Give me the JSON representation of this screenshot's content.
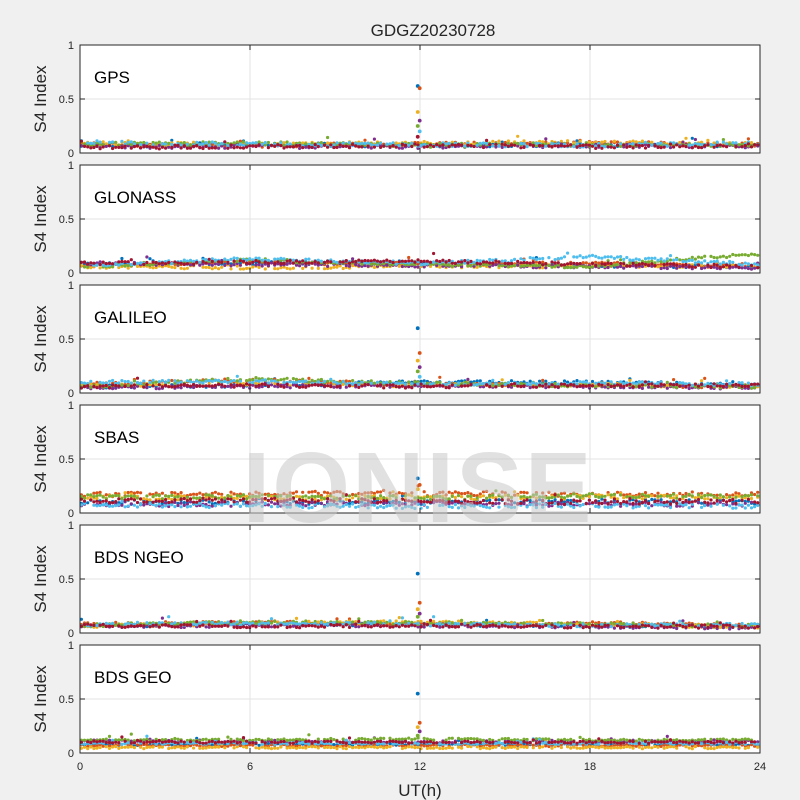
{
  "title": "GDGZ20230728",
  "watermark": "IONISE",
  "chart_data": {
    "type": "scatter",
    "title": "GDGZ20230728",
    "xlabel": "UT(h)",
    "ylabel": "S4 Index",
    "xlim": [
      0,
      24
    ],
    "ylim": [
      0,
      1
    ],
    "x_ticks": [
      "0",
      "6",
      "12",
      "18",
      "24"
    ],
    "y_ticks": [
      "0",
      "0.5",
      "1"
    ],
    "grid": true,
    "colors": [
      "#0072BD",
      "#D95319",
      "#EDB120",
      "#7E2F8E",
      "#77AC30",
      "#4DBEEE",
      "#A2142F"
    ],
    "panels": [
      {
        "label": "GPS",
        "baseline": 0.07,
        "noise": 0.035,
        "tracks": [
          {
            "color": "#0072BD",
            "x": [
              0,
              6,
              12,
              18,
              24
            ],
            "y": [
              0.07,
              0.08,
              0.07,
              0.08,
              0.07
            ]
          },
          {
            "color": "#D95319",
            "x": [
              0,
              6,
              12,
              18,
              24
            ],
            "y": [
              0.08,
              0.07,
              0.08,
              0.09,
              0.08
            ]
          },
          {
            "color": "#EDB120",
            "x": [
              0,
              6,
              12,
              18,
              24
            ],
            "y": [
              0.09,
              0.08,
              0.09,
              0.1,
              0.08
            ]
          },
          {
            "color": "#7E2F8E",
            "x": [
              0,
              6,
              12,
              18,
              24
            ],
            "y": [
              0.06,
              0.06,
              0.06,
              0.07,
              0.06
            ]
          },
          {
            "color": "#77AC30",
            "x": [
              0,
              6,
              12,
              18,
              24
            ],
            "y": [
              0.08,
              0.09,
              0.07,
              0.08,
              0.07
            ]
          },
          {
            "color": "#4DBEEE",
            "x": [
              0,
              6,
              12,
              18,
              24
            ],
            "y": [
              0.1,
              0.08,
              0.08,
              0.07,
              0.09
            ]
          },
          {
            "color": "#A2142F",
            "x": [
              0,
              6,
              12,
              18,
              24
            ],
            "y": [
              0.05,
              0.06,
              0.07,
              0.06,
              0.07
            ]
          }
        ],
        "spike": {
          "x": 11.95,
          "y": [
            0.62,
            0.6,
            0.38,
            0.3,
            0.25,
            0.2,
            0.15
          ]
        }
      },
      {
        "label": "GLONASS",
        "baseline": 0.08,
        "noise": 0.03,
        "tracks": [
          {
            "color": "#0072BD",
            "x": [
              0,
              6,
              12,
              18,
              24
            ],
            "y": [
              0.08,
              0.09,
              0.1,
              0.07,
              0.06
            ]
          },
          {
            "color": "#D95319",
            "x": [
              0,
              6,
              12,
              18,
              24
            ],
            "y": [
              0.07,
              0.1,
              0.08,
              0.09,
              0.06
            ]
          },
          {
            "color": "#EDB120",
            "x": [
              0,
              6,
              12,
              18,
              24
            ],
            "y": [
              0.06,
              0.05,
              0.06,
              0.06,
              0.07
            ]
          },
          {
            "color": "#7E2F8E",
            "x": [
              0,
              6,
              12,
              18,
              24
            ],
            "y": [
              0.09,
              0.08,
              0.07,
              0.06,
              0.05
            ]
          },
          {
            "color": "#77AC30",
            "x": [
              0,
              6,
              12,
              18,
              24
            ],
            "y": [
              0.06,
              0.12,
              0.08,
              0.06,
              0.18
            ]
          },
          {
            "color": "#4DBEEE",
            "x": [
              0,
              6,
              12,
              18,
              24
            ],
            "y": [
              0.07,
              0.13,
              0.09,
              0.15,
              0.08
            ]
          },
          {
            "color": "#A2142F",
            "x": [
              0,
              6,
              12,
              18,
              24
            ],
            "y": [
              0.09,
              0.1,
              0.11,
              0.08,
              0.06
            ]
          }
        ],
        "spike": null
      },
      {
        "label": "GALILEO",
        "baseline": 0.07,
        "noise": 0.03,
        "tracks": [
          {
            "color": "#0072BD",
            "x": [
              0,
              6,
              12,
              18,
              24
            ],
            "y": [
              0.06,
              0.07,
              0.1,
              0.1,
              0.07
            ]
          },
          {
            "color": "#D95319",
            "x": [
              0,
              6,
              12,
              18,
              24
            ],
            "y": [
              0.08,
              0.12,
              0.08,
              0.07,
              0.06
            ]
          },
          {
            "color": "#EDB120",
            "x": [
              0,
              6,
              12,
              18,
              24
            ],
            "y": [
              0.07,
              0.08,
              0.07,
              0.08,
              0.06
            ]
          },
          {
            "color": "#7E2F8E",
            "x": [
              0,
              6,
              12,
              18,
              24
            ],
            "y": [
              0.05,
              0.06,
              0.07,
              0.06,
              0.05
            ]
          },
          {
            "color": "#77AC30",
            "x": [
              0,
              6,
              12,
              18,
              24
            ],
            "y": [
              0.06,
              0.13,
              0.09,
              0.07,
              0.06
            ]
          },
          {
            "color": "#4DBEEE",
            "x": [
              0,
              6,
              12,
              18,
              24
            ],
            "y": [
              0.1,
              0.11,
              0.08,
              0.09,
              0.08
            ]
          },
          {
            "color": "#A2142F",
            "x": [
              0,
              6,
              12,
              18,
              24
            ],
            "y": [
              0.06,
              0.07,
              0.06,
              0.07,
              0.07
            ]
          }
        ],
        "spike": {
          "x": 11.95,
          "y": [
            0.6,
            0.37,
            0.3,
            0.24,
            0.2,
            0.15
          ]
        }
      },
      {
        "label": "SBAS",
        "baseline": 0.12,
        "noise": 0.04,
        "tracks": [
          {
            "color": "#0072BD",
            "x": [
              0,
              6,
              12,
              18,
              24
            ],
            "y": [
              0.1,
              0.1,
              0.1,
              0.11,
              0.1
            ]
          },
          {
            "color": "#D95319",
            "x": [
              0,
              6,
              12,
              18,
              24
            ],
            "y": [
              0.17,
              0.18,
              0.18,
              0.17,
              0.18
            ]
          },
          {
            "color": "#EDB120",
            "x": [
              0,
              6,
              12,
              18,
              24
            ],
            "y": [
              0.14,
              0.14,
              0.14,
              0.15,
              0.14
            ]
          },
          {
            "color": "#7E2F8E",
            "x": [
              0,
              6,
              12,
              18,
              24
            ],
            "y": [
              0.08,
              0.08,
              0.09,
              0.08,
              0.08
            ]
          },
          {
            "color": "#77AC30",
            "x": [
              0,
              6,
              12,
              18,
              24
            ],
            "y": [
              0.15,
              0.15,
              0.14,
              0.16,
              0.15
            ]
          },
          {
            "color": "#4DBEEE",
            "x": [
              0,
              6,
              12,
              18,
              24
            ],
            "y": [
              0.07,
              0.07,
              0.06,
              0.07,
              0.06
            ]
          },
          {
            "color": "#A2142F",
            "x": [
              0,
              6,
              12,
              18,
              24
            ],
            "y": [
              0.11,
              0.12,
              0.11,
              0.1,
              0.11
            ]
          }
        ],
        "spike": {
          "x": 11.95,
          "y": [
            0.32,
            0.26,
            0.22
          ]
        }
      },
      {
        "label": "BDS NGEO",
        "baseline": 0.07,
        "noise": 0.03,
        "tracks": [
          {
            "color": "#0072BD",
            "x": [
              0,
              6,
              12,
              18,
              24
            ],
            "y": [
              0.07,
              0.08,
              0.08,
              0.07,
              0.06
            ]
          },
          {
            "color": "#D95319",
            "x": [
              0,
              6,
              12,
              18,
              24
            ],
            "y": [
              0.08,
              0.1,
              0.08,
              0.09,
              0.07
            ]
          },
          {
            "color": "#EDB120",
            "x": [
              0,
              6,
              12,
              18,
              24
            ],
            "y": [
              0.06,
              0.09,
              0.1,
              0.08,
              0.06
            ]
          },
          {
            "color": "#7E2F8E",
            "x": [
              0,
              6,
              12,
              18,
              24
            ],
            "y": [
              0.06,
              0.07,
              0.07,
              0.06,
              0.05
            ]
          },
          {
            "color": "#77AC30",
            "x": [
              0,
              6,
              12,
              18,
              24
            ],
            "y": [
              0.07,
              0.1,
              0.09,
              0.08,
              0.07
            ]
          },
          {
            "color": "#4DBEEE",
            "x": [
              0,
              6,
              12,
              18,
              24
            ],
            "y": [
              0.08,
              0.09,
              0.08,
              0.07,
              0.08
            ]
          },
          {
            "color": "#A2142F",
            "x": [
              0,
              6,
              12,
              18,
              24
            ],
            "y": [
              0.07,
              0.06,
              0.07,
              0.06,
              0.06
            ]
          }
        ],
        "spike": {
          "x": 11.95,
          "y": [
            0.55,
            0.28,
            0.22,
            0.18,
            0.15
          ]
        }
      },
      {
        "label": "BDS GEO",
        "baseline": 0.09,
        "noise": 0.02,
        "tracks": [
          {
            "color": "#0072BD",
            "x": [
              0,
              6,
              12,
              18,
              24
            ],
            "y": [
              0.08,
              0.08,
              0.08,
              0.08,
              0.08
            ]
          },
          {
            "color": "#D95319",
            "x": [
              0,
              6,
              12,
              18,
              24
            ],
            "y": [
              0.07,
              0.07,
              0.07,
              0.07,
              0.07
            ]
          },
          {
            "color": "#EDB120",
            "x": [
              0,
              6,
              12,
              18,
              24
            ],
            "y": [
              0.05,
              0.05,
              0.05,
              0.05,
              0.05
            ]
          },
          {
            "color": "#7E2F8E",
            "x": [
              0,
              6,
              12,
              18,
              24
            ],
            "y": [
              0.11,
              0.11,
              0.1,
              0.11,
              0.11
            ]
          },
          {
            "color": "#77AC30",
            "x": [
              0,
              6,
              12,
              18,
              24
            ],
            "y": [
              0.12,
              0.12,
              0.13,
              0.12,
              0.12
            ]
          },
          {
            "color": "#4DBEEE",
            "x": [
              0,
              6,
              12,
              18,
              24
            ],
            "y": [
              0.09,
              0.09,
              0.09,
              0.09,
              0.09
            ]
          },
          {
            "color": "#A2142F",
            "x": [
              0,
              6,
              12,
              18,
              24
            ],
            "y": [
              0.1,
              0.1,
              0.1,
              0.1,
              0.1
            ]
          }
        ],
        "spike": {
          "x": 11.95,
          "y": [
            0.55,
            0.28,
            0.24,
            0.2,
            0.16
          ]
        }
      }
    ]
  }
}
